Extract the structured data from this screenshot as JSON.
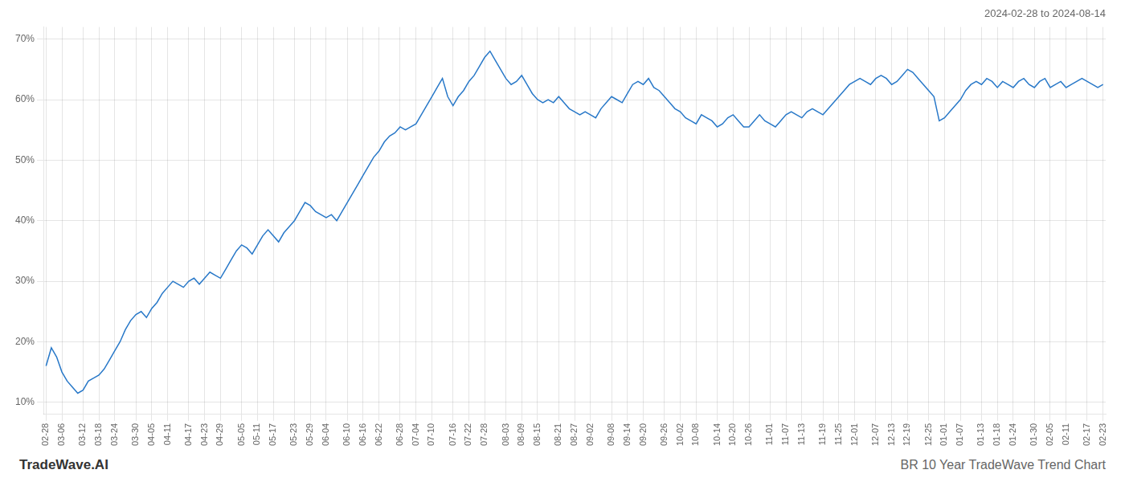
{
  "chart_data": {
    "type": "line",
    "title": "BR 10 Year TradeWave Trend Chart",
    "subtitle": "2024-02-28 to 2024-08-14",
    "annotations": [
      "TradeWave.AI"
    ],
    "color": "#2878c8",
    "grid": true,
    "ylim": [
      8,
      72
    ],
    "yticks": [
      {
        "value": 10,
        "label": "10%"
      },
      {
        "value": 20,
        "label": "20%"
      },
      {
        "value": 30,
        "label": "30%"
      },
      {
        "value": 40,
        "label": "40%"
      },
      {
        "value": 50,
        "label": "50%"
      },
      {
        "value": 60,
        "label": "60%"
      },
      {
        "value": 70,
        "label": "70%"
      }
    ],
    "categories": [
      "02-28",
      null,
      null,
      "03-06",
      null,
      null,
      null,
      "03-12",
      null,
      null,
      "03-18",
      null,
      null,
      "03-24",
      null,
      null,
      null,
      "03-30",
      null,
      null,
      "04-05",
      null,
      null,
      "04-11",
      null,
      null,
      null,
      "04-17",
      null,
      null,
      "04-23",
      null,
      null,
      "04-29",
      null,
      null,
      null,
      "05-05",
      null,
      null,
      "05-11",
      null,
      null,
      "05-17",
      null,
      null,
      null,
      "05-23",
      null,
      null,
      "05-29",
      null,
      null,
      "06-04",
      null,
      null,
      null,
      "06-10",
      null,
      null,
      "06-16",
      null,
      null,
      "06-22",
      null,
      null,
      null,
      "06-28",
      null,
      null,
      "07-04",
      null,
      null,
      "07-10",
      null,
      null,
      null,
      "07-16",
      null,
      null,
      "07-22",
      null,
      null,
      "07-28",
      null,
      null,
      null,
      "08-03",
      null,
      null,
      "08-09",
      null,
      null,
      "08-15",
      null,
      null,
      null,
      "08-21",
      null,
      null,
      "08-27",
      null,
      null,
      "09-02",
      null,
      null,
      null,
      "09-08",
      null,
      null,
      "09-14",
      null,
      null,
      "09-20",
      null,
      null,
      null,
      "09-26",
      null,
      null,
      "10-02",
      null,
      null,
      "10-08",
      null,
      null,
      null,
      "10-14",
      null,
      null,
      "10-20",
      null,
      null,
      "10-26",
      null,
      null,
      null,
      "11-01",
      null,
      null,
      "11-07",
      null,
      null,
      "11-13",
      null,
      null,
      null,
      "11-19",
      null,
      null,
      "11-25",
      null,
      null,
      "12-01",
      null,
      null,
      null,
      "12-07",
      null,
      null,
      "12-13",
      null,
      null,
      "12-19",
      null,
      null,
      null,
      "12-25",
      null,
      null,
      "01-01",
      null,
      null,
      "01-07",
      null,
      null,
      null,
      "01-13",
      null,
      null,
      "01-18",
      null,
      null,
      "01-24",
      null,
      null,
      null,
      "01-30",
      null,
      null,
      "02-05",
      null,
      null,
      "02-11",
      null,
      null,
      null,
      "02-17",
      null,
      null,
      "02-23"
    ],
    "values": [
      16.0,
      19.0,
      17.5,
      15.0,
      13.5,
      12.5,
      11.5,
      12.0,
      13.5,
      14.0,
      14.5,
      15.5,
      17.0,
      18.5,
      20.0,
      22.0,
      23.5,
      24.5,
      25.0,
      24.0,
      25.5,
      26.5,
      28.0,
      29.0,
      30.0,
      29.5,
      29.0,
      30.0,
      30.5,
      29.5,
      30.5,
      31.5,
      31.0,
      30.5,
      32.0,
      33.5,
      35.0,
      36.0,
      35.5,
      34.5,
      36.0,
      37.5,
      38.5,
      37.5,
      36.5,
      38.0,
      39.0,
      40.0,
      41.5,
      43.0,
      42.5,
      41.5,
      41.0,
      40.5,
      41.0,
      40.0,
      41.5,
      43.0,
      44.5,
      46.0,
      47.5,
      49.0,
      50.5,
      51.5,
      53.0,
      54.0,
      54.5,
      55.5,
      55.0,
      55.5,
      56.0,
      57.5,
      59.0,
      60.5,
      62.0,
      63.5,
      60.5,
      59.0,
      60.5,
      61.5,
      63.0,
      64.0,
      65.5,
      67.0,
      68.0,
      66.5,
      65.0,
      63.5,
      62.5,
      63.0,
      64.0,
      62.5,
      61.0,
      60.0,
      59.5,
      60.0,
      59.5,
      60.5,
      59.5,
      58.5,
      58.0,
      57.5,
      58.0,
      57.5,
      57.0,
      58.5,
      59.5,
      60.5,
      60.0,
      59.5,
      61.0,
      62.5,
      63.0,
      62.5,
      63.5,
      62.0,
      61.5,
      60.5,
      59.5,
      58.5,
      58.0,
      57.0,
      56.5,
      56.0,
      57.5,
      57.0,
      56.5,
      55.5,
      56.0,
      57.0,
      57.5,
      56.5,
      55.5,
      55.5,
      56.5,
      57.5,
      56.5,
      56.0,
      55.5,
      56.5,
      57.5,
      58.0,
      57.5,
      57.0,
      58.0,
      58.5,
      58.0,
      57.5,
      58.5,
      59.5,
      60.5,
      61.5,
      62.5,
      63.0,
      63.5,
      63.0,
      62.5,
      63.5,
      64.0,
      63.5,
      62.5,
      63.0,
      64.0,
      65.0,
      64.5,
      63.5,
      62.5,
      61.5,
      60.5,
      56.5,
      57.0,
      58.0,
      59.0,
      60.0,
      61.5,
      62.5,
      63.0,
      62.5,
      63.5,
      63.0,
      62.0,
      63.0,
      62.5,
      62.0,
      63.0,
      63.5,
      62.5,
      62.0,
      63.0,
      63.5,
      62.0,
      62.5,
      63.0,
      62.0,
      62.5,
      63.0,
      63.5,
      63.0,
      62.5,
      62.0,
      62.5
    ]
  }
}
